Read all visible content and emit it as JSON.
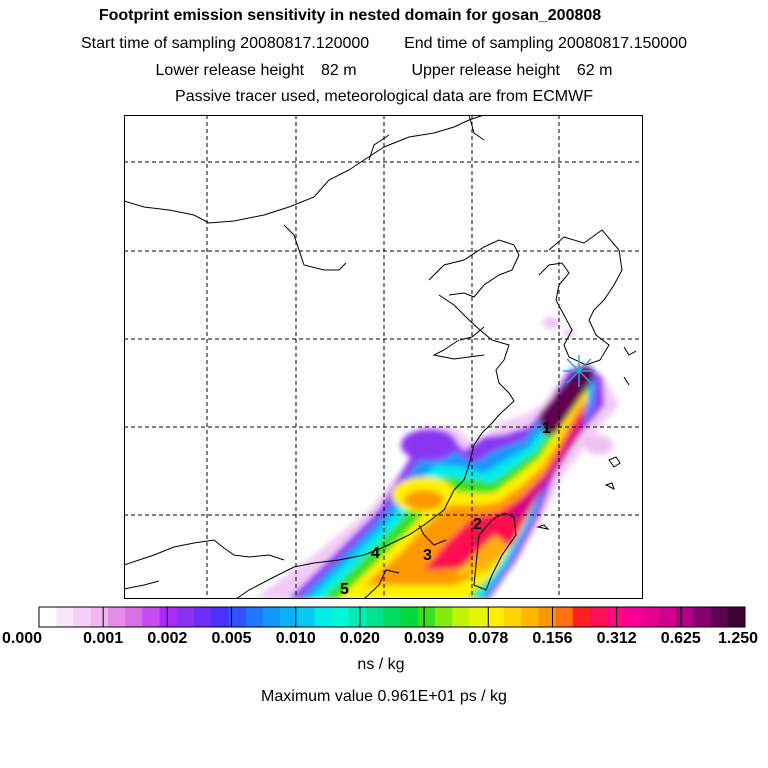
{
  "header": {
    "title": "Footprint emission sensitivity in nested domain for gosan_200808",
    "start_label": "Start time of sampling",
    "start_value": "20080817.120000",
    "end_label": "End time of sampling",
    "end_value": "20080817.150000",
    "lower_label": "Lower release height",
    "lower_value": "82 m",
    "upper_label": "Upper release height",
    "upper_value": "62 m",
    "tracer_note": "Passive tracer used, meteorological data are from ECMWF"
  },
  "map": {
    "release_point_icon": "star-cross-icon",
    "release_point_color": "#2fa7c8",
    "trajectory_labels": [
      "1",
      "2",
      "3",
      "4",
      "5"
    ]
  },
  "colorbar": {
    "unit": "ns / kg",
    "tick_labels": [
      "0.000",
      "0.001",
      "0.002",
      "0.005",
      "0.010",
      "0.020",
      "0.039",
      "0.078",
      "0.156",
      "0.312",
      "0.625",
      "1.250"
    ],
    "colors": [
      "#ffffff",
      "#fbe7fb",
      "#f6cff6",
      "#f0b6f0",
      "#e48ce8",
      "#d870e8",
      "#c64cf0",
      "#a82cf4",
      "#8a34f2",
      "#6e2cf4",
      "#4a32fa",
      "#3450ff",
      "#1e78ff",
      "#1496ff",
      "#0cb0f4",
      "#08c8f0",
      "#00ecec",
      "#00f8d8",
      "#00ecb4",
      "#00e490",
      "#00dc60",
      "#00d83c",
      "#38e020",
      "#80ec10",
      "#c0f400",
      "#e4f800",
      "#fff000",
      "#ffd400",
      "#ffb800",
      "#ff9800",
      "#ff7010",
      "#ff2020",
      "#ff1050",
      "#ff0880",
      "#f80098",
      "#e80090",
      "#d00090",
      "#b00088",
      "#880070",
      "#600050",
      "#3c0030"
    ]
  },
  "max_value": "Maximum value  0.961E+01 ps / kg"
}
